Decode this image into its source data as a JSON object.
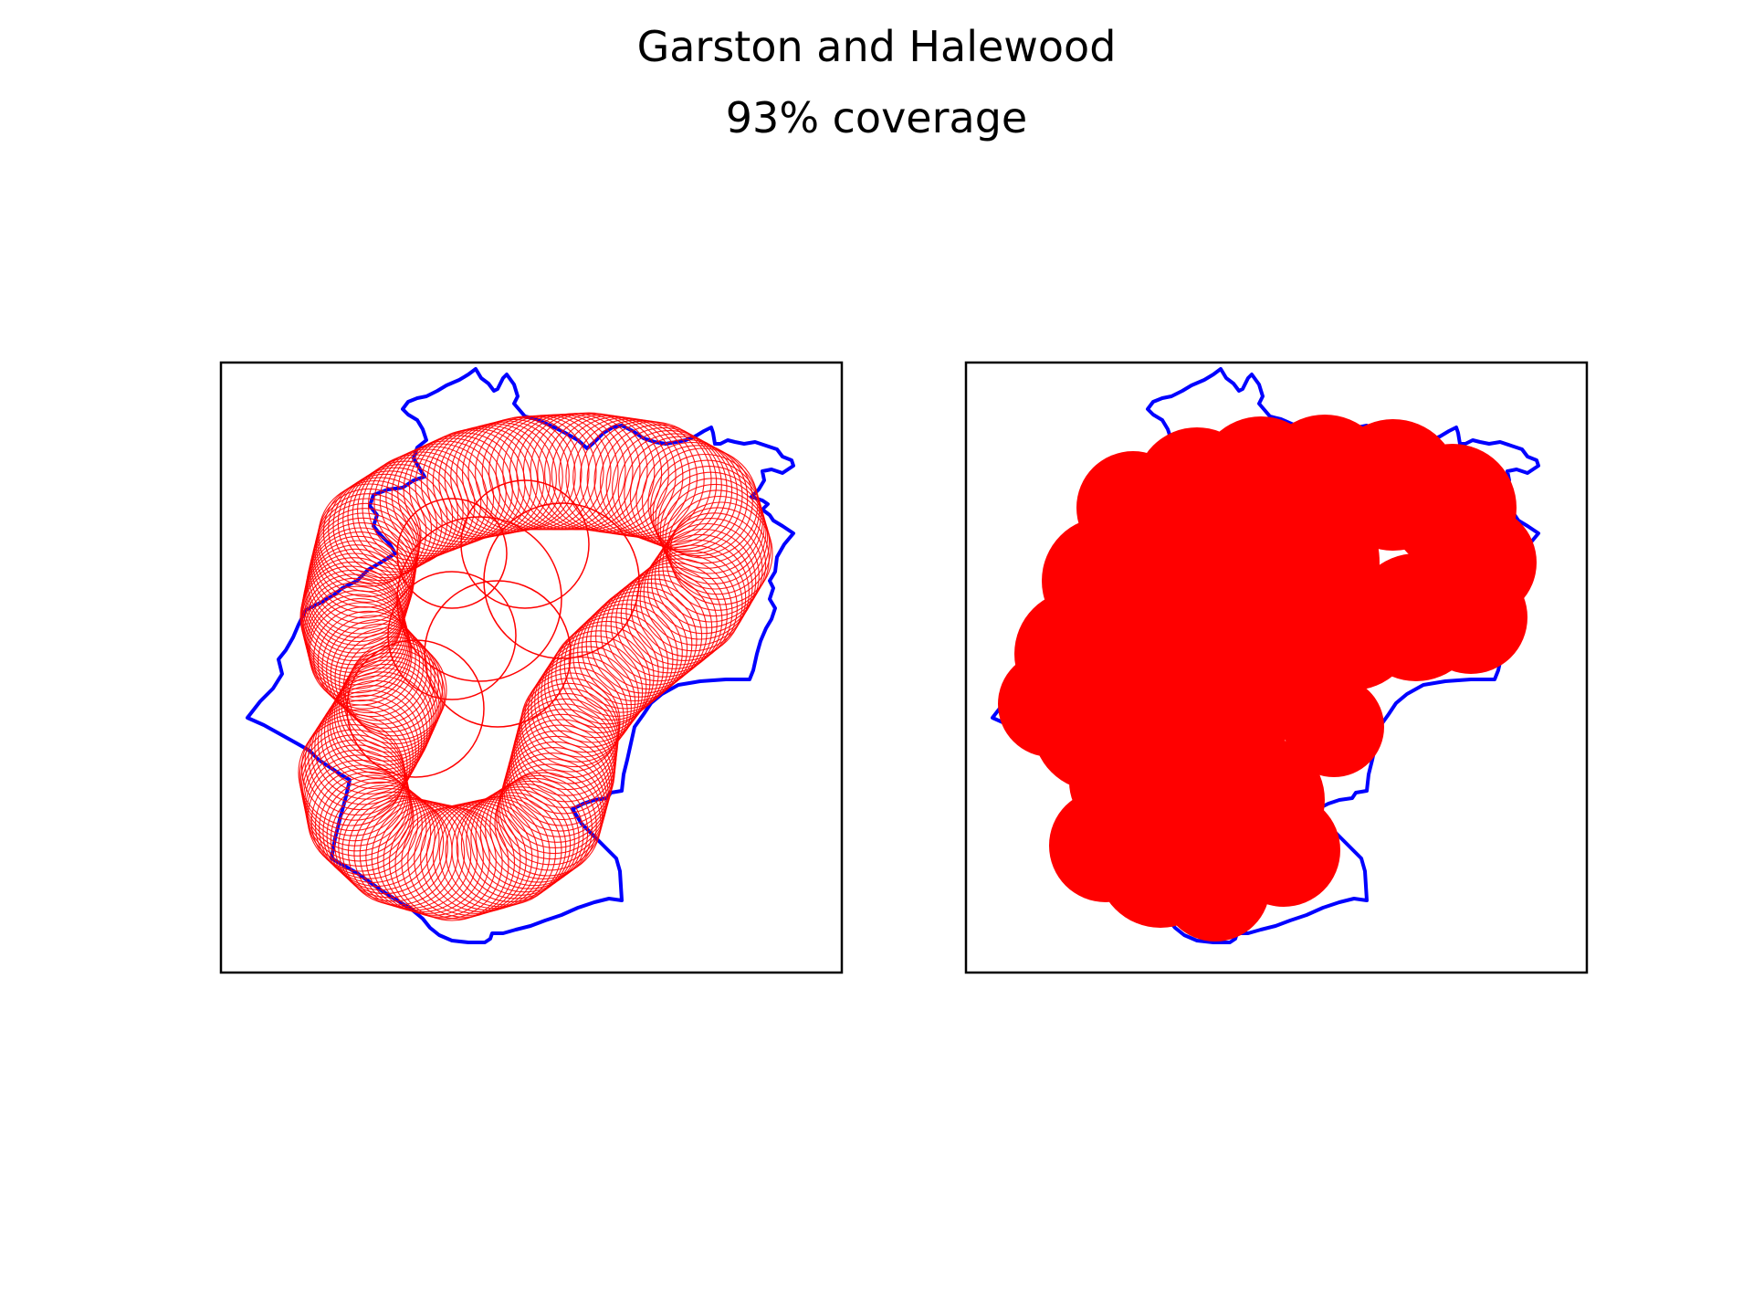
{
  "figure": {
    "title": "Garston and Halewood",
    "subtitle": "93% coverage"
  },
  "panels": [
    {
      "name": "coverage-circles-panel",
      "style": "circle outlines"
    },
    {
      "name": "coverage-filled-panel",
      "style": "filled union"
    }
  ],
  "colors": {
    "boundary": "#0000ff",
    "coverage": "#ff0000",
    "frame": "#000000",
    "background": "#ffffff"
  }
}
